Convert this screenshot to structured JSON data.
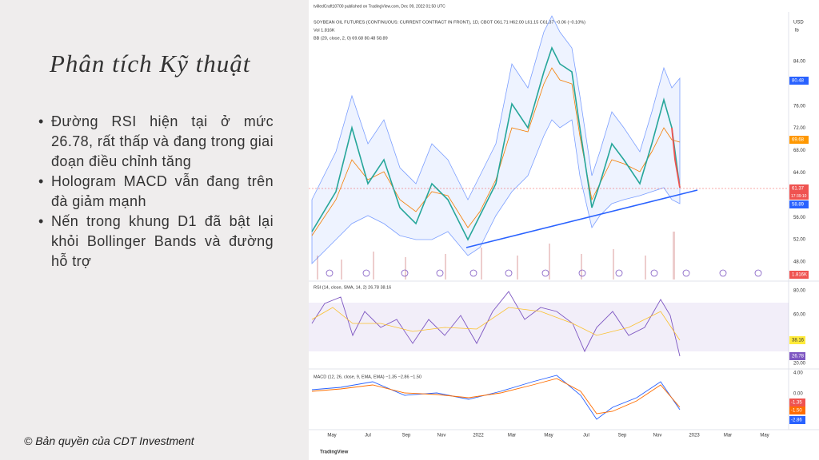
{
  "slide": {
    "title": "Phân tích Kỹ thuật",
    "bullets": [
      "Đường RSI hiện tại ở mức 26.78, rất thấp và đang trong giai đoạn điều chỉnh tăng",
      "Hologram MACD vẫn đang trên đà giảm mạnh",
      "Nến trong khung D1 đã bật lại khỏi Bollinger Bands và đường hỗ trợ"
    ],
    "footer": "© Bản quyền của CDT Investment"
  },
  "chart_image": {
    "published": "tvilledCraft10700 published on TradingView.com, Dec 09, 2022 01:50 UTC",
    "symbol": "SOYBEAN OIL FUTURES (CONTINUOUS: CURRENT CONTRACT IN FRONT), 1D, CBOT  O61.71 H62.00 L61.15 C61.37 −0.06 (−0.10%)",
    "volume": "Vol 1.816K",
    "bb": "BB (20, close, 2, 0) 69.68 80.48 58.89",
    "currency": "USD",
    "unit": "lb",
    "price_ticks": [
      "84.00",
      "76.00",
      "72.00",
      "68.00",
      "64.00",
      "56.00",
      "52.00",
      "48.00"
    ],
    "price_badges": [
      "80.48",
      "69.68",
      "61.37",
      "58.89",
      "1.816K"
    ],
    "countdown": "17:39:10",
    "rsi": "RSI (14, close, SMA, 14, 2) 26.78 38.16",
    "rsi_ticks": [
      "80.00",
      "60.00",
      "20.00"
    ],
    "rsi_badges": [
      "38.16",
      "26.78"
    ],
    "macd": "MACD (12, 26, close, 9, EMA, EMA) −1.35 −2.86 −1.50",
    "macd_ticks": [
      "4.00",
      "0.00"
    ],
    "macd_badges": [
      "-1.35",
      "-1.50",
      "-2.86"
    ],
    "months": [
      "May",
      "Jul",
      "Sep",
      "Nov",
      "2022",
      "Mar",
      "May",
      "Jul",
      "Sep",
      "Nov",
      "2023",
      "Mar",
      "May"
    ],
    "brand": "TradingView"
  }
}
